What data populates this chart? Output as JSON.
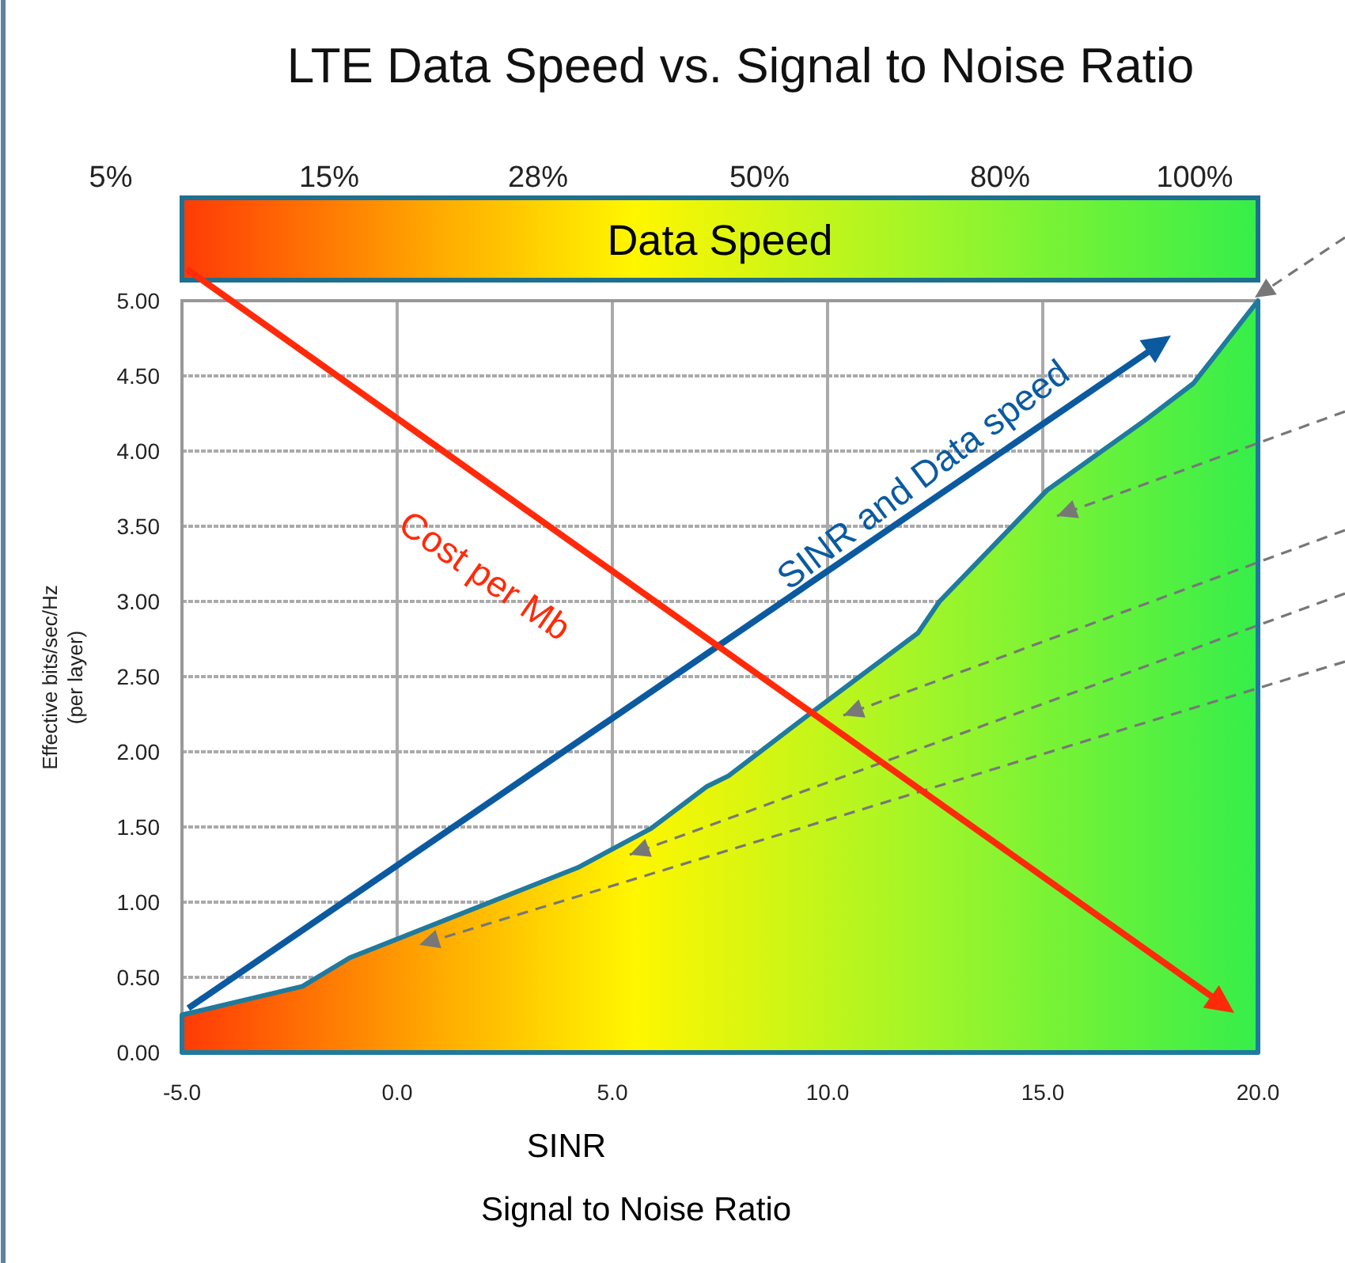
{
  "chart_data": {
    "type": "area",
    "title": "LTE Data Speed vs. Signal to Noise Ratio",
    "xlabel": "SINR\nSignal to Noise Ratio",
    "ylabel": "Effective bits/sec/Hz\n(per layer)",
    "annotations": [
      "Data Speed",
      "5%",
      "15%",
      "28%",
      "50%",
      "80%",
      "100%",
      "SINR and Data speed",
      "Cost per Mb"
    ],
    "x": [
      -5.0,
      -2.2,
      -1.1,
      4.2,
      5.9,
      7.2,
      7.7,
      9.3,
      12.1,
      12.6,
      15.1,
      17.4,
      18.5,
      20.0
    ],
    "series": [
      {
        "color": "#1f7a9e",
        "values": [
          0.25,
          0.44,
          0.63,
          1.23,
          1.49,
          1.77,
          1.84,
          2.19,
          2.79,
          3.0,
          3.74,
          4.21,
          4.45,
          5.0
        ]
      }
    ],
    "xlim": [
      -5,
      20
    ],
    "xticks": [
      {
        "value": -5,
        "label": "-5.0"
      },
      {
        "value": 0,
        "label": "0.0"
      },
      {
        "value": 5,
        "label": "5.0"
      },
      {
        "value": 10,
        "label": "10.0"
      },
      {
        "value": 15,
        "label": "15.0"
      },
      {
        "value": 20,
        "label": "20.0"
      }
    ],
    "ylim": [
      0,
      5
    ],
    "yticks": [
      {
        "value": 0,
        "label": "0.00"
      },
      {
        "value": 0.5,
        "label": "0.50"
      },
      {
        "value": 1,
        "label": "1.00"
      },
      {
        "value": 1.5,
        "label": "1.50"
      },
      {
        "value": 2,
        "label": "2.00"
      },
      {
        "value": 2.5,
        "label": "2.50"
      },
      {
        "value": 3,
        "label": "3.00"
      },
      {
        "value": 3.5,
        "label": "3.50"
      },
      {
        "value": 4,
        "label": "4.00"
      },
      {
        "value": 4.5,
        "label": "4.50"
      },
      {
        "value": 5,
        "label": "5.00"
      }
    ],
    "grid": true
  }
}
